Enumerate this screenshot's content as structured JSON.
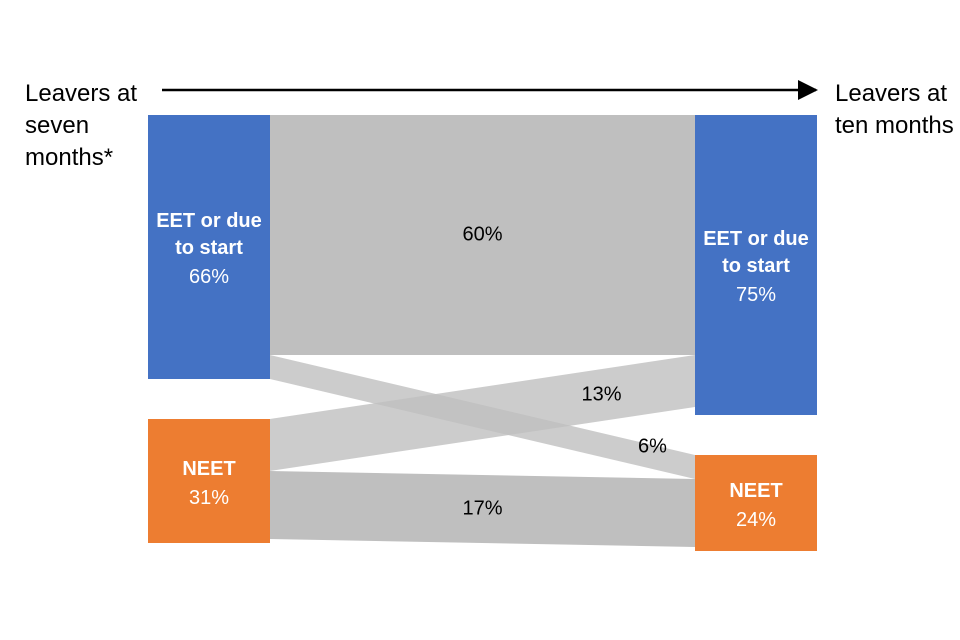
{
  "chart_data": {
    "type": "sankey",
    "stages": [
      {
        "label": "Leavers at seven months*",
        "names": [
          "EET or due to start",
          "NEET"
        ],
        "values": [
          66,
          31
        ],
        "value_labels": [
          "66%",
          "31%"
        ],
        "colors": [
          "#4472c4",
          "#ed7d31"
        ]
      },
      {
        "label": "Leavers at ten months",
        "names": [
          "EET or due to start",
          "NEET"
        ],
        "values": [
          75,
          24
        ],
        "value_labels": [
          "75%",
          "24%"
        ],
        "colors": [
          "#4472c4",
          "#ed7d31"
        ]
      }
    ],
    "flows": {
      "from": [
        0,
        0,
        1,
        1
      ],
      "to": [
        0,
        1,
        0,
        1
      ],
      "values": [
        60,
        6,
        13,
        17
      ],
      "value_labels": [
        "60%",
        "6%",
        "13%",
        "17%"
      ],
      "color": "#bfbfbf"
    }
  }
}
